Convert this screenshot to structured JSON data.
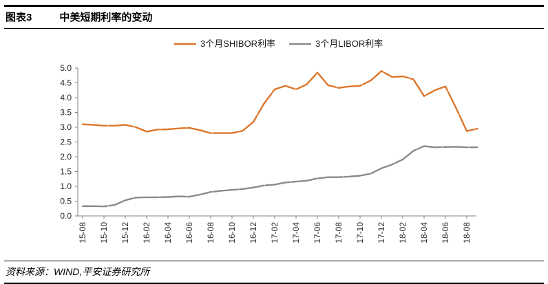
{
  "header": {
    "label": "图表3",
    "title": "中美短期利率的变动"
  },
  "footer": {
    "source": "资料来源：WIND,平安证券研究所"
  },
  "colors": {
    "shibor": "#DD762B",
    "libor": "#8A8A8A",
    "axis": "#808080",
    "tick_text": "#262626"
  },
  "chart_data": {
    "type": "line",
    "title": "中美短期利率的变动",
    "xlabel": "",
    "ylabel": "",
    "ylim": [
      0.0,
      5.0
    ],
    "grid": false,
    "legend_position": "top-center",
    "x": [
      "2015-08",
      "2015-09",
      "2015-10",
      "2015-11",
      "2015-12",
      "2016-01",
      "2016-02",
      "2016-03",
      "2016-04",
      "2016-05",
      "2016-06",
      "2016-07",
      "2016-08",
      "2016-09",
      "2016-10",
      "2016-11",
      "2016-12",
      "2017-01",
      "2017-02",
      "2017-03",
      "2017-04",
      "2017-05",
      "2017-06",
      "2017-07",
      "2017-08",
      "2017-09",
      "2017-10",
      "2017-11",
      "2017-12",
      "2018-01",
      "2018-02",
      "2018-03",
      "2018-04",
      "2018-05",
      "2018-06",
      "2018-07",
      "2018-08",
      "2018-09"
    ],
    "series": [
      {
        "name": "3个月SHIBOR利率",
        "color": "#DD762B",
        "values": [
          3.1,
          3.08,
          3.05,
          3.05,
          3.08,
          3.0,
          2.85,
          2.92,
          2.93,
          2.96,
          2.98,
          2.9,
          2.8,
          2.8,
          2.8,
          2.88,
          3.18,
          3.8,
          4.28,
          4.4,
          4.28,
          4.45,
          4.85,
          4.42,
          4.33,
          4.38,
          4.4,
          4.58,
          4.9,
          4.7,
          4.72,
          4.62,
          4.05,
          4.25,
          4.38,
          3.65,
          2.87,
          2.95
        ]
      },
      {
        "name": "3个月LIBOR利率",
        "color": "#8A8A8A",
        "values": [
          0.33,
          0.33,
          0.32,
          0.37,
          0.53,
          0.62,
          0.63,
          0.63,
          0.64,
          0.66,
          0.65,
          0.72,
          0.81,
          0.85,
          0.88,
          0.91,
          0.96,
          1.03,
          1.06,
          1.13,
          1.16,
          1.19,
          1.27,
          1.31,
          1.31,
          1.33,
          1.36,
          1.43,
          1.61,
          1.74,
          1.91,
          2.2,
          2.36,
          2.32,
          2.33,
          2.34,
          2.32,
          2.32
        ]
      }
    ],
    "xticks": [
      "15-08",
      "15-10",
      "15-12",
      "16-02",
      "16-04",
      "16-06",
      "16-08",
      "16-10",
      "16-12",
      "17-02",
      "17-04",
      "17-06",
      "17-08",
      "17-10",
      "17-12",
      "18-02",
      "18-04",
      "18-06",
      "18-08"
    ],
    "yticks": [
      "0.0",
      "0.5",
      "1.0",
      "1.5",
      "2.0",
      "2.5",
      "3.0",
      "3.5",
      "4.0",
      "4.5",
      "5.0"
    ]
  }
}
